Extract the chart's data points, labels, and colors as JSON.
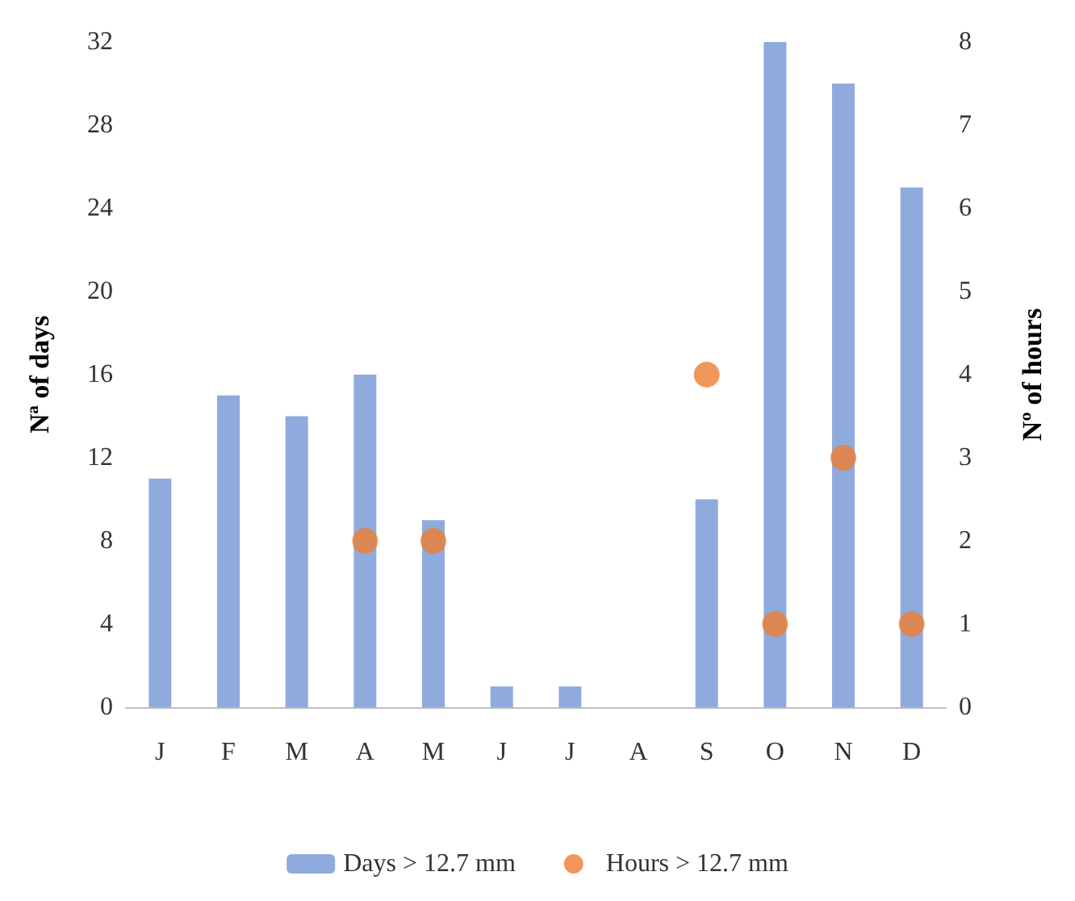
{
  "chart_data": {
    "type": "bar",
    "categories": [
      "J",
      "F",
      "M",
      "A",
      "M",
      "J",
      "J",
      "A",
      "S",
      "O",
      "N",
      "D"
    ],
    "series": [
      {
        "name": "Days > 12.7 mm",
        "color": "#8faadc",
        "values": [
          11,
          15,
          14,
          16,
          9,
          1,
          1,
          0,
          10,
          32,
          30,
          25
        ]
      },
      {
        "name": "Hours > 12.7 mm",
        "type": "scatter",
        "axis": "y2",
        "color": "#ed7d31",
        "values": [
          null,
          null,
          null,
          2,
          2,
          null,
          null,
          null,
          4,
          1,
          3,
          1
        ]
      }
    ],
    "ylabel": "Nª of days",
    "y2label": "Nº of hours",
    "ylim": [
      0,
      32
    ],
    "yticks": [
      0,
      4,
      8,
      12,
      16,
      20,
      24,
      28,
      32
    ],
    "y2lim": [
      0,
      8
    ],
    "y2ticks": [
      0,
      1,
      2,
      3,
      4,
      5,
      6,
      7,
      8
    ],
    "legend": "bottom",
    "grid": false,
    "marker": "circle"
  }
}
